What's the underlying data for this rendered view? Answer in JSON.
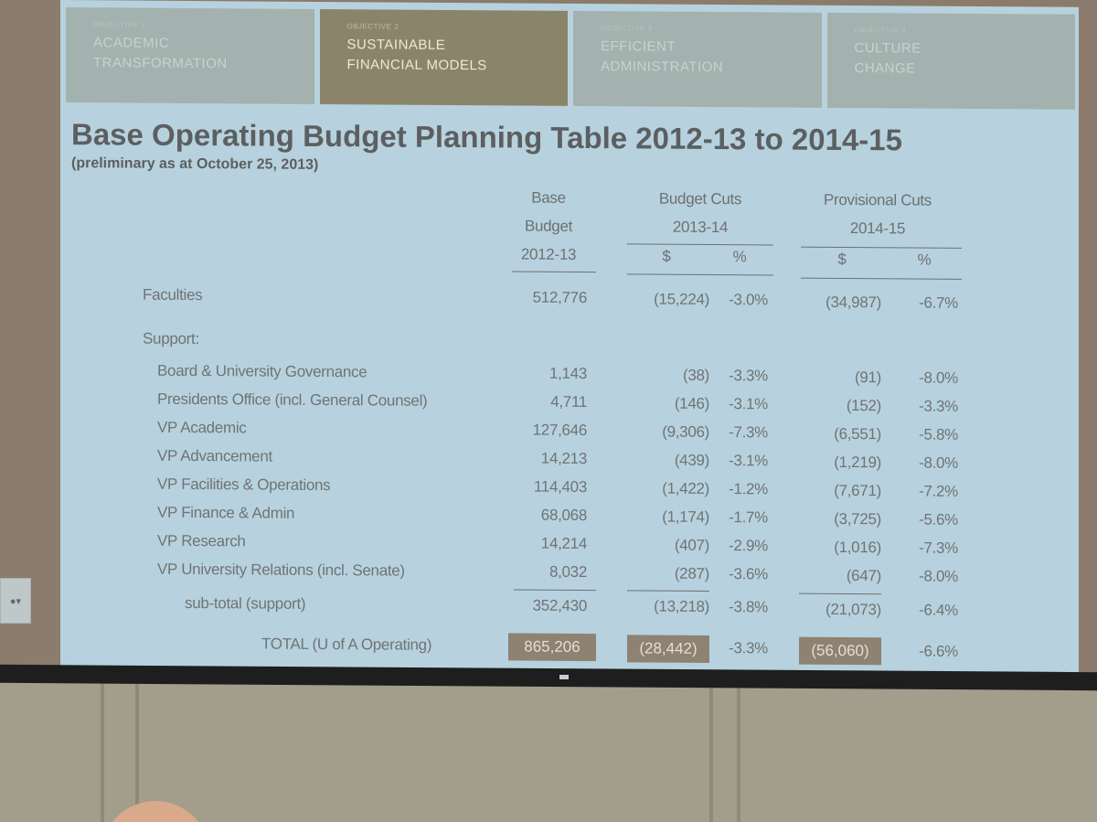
{
  "slide": {
    "tabs": [
      {
        "kicker": "OBJECTIVE 1",
        "line1": "ACADEMIC",
        "line2": "TRANSFORMATION",
        "active": false
      },
      {
        "kicker": "OBJECTIVE 2",
        "line1": "SUSTAINABLE",
        "line2": "FINANCIAL MODELS",
        "active": true
      },
      {
        "kicker": "OBJECTIVE 3",
        "line1": "EFFICIENT",
        "line2": "ADMINISTRATION",
        "active": false
      },
      {
        "kicker": "OBJECTIVE 4",
        "line1": "CULTURE",
        "line2": "CHANGE",
        "active": false
      }
    ],
    "title": "Base Operating Budget Planning Table 2012-13 to 2014-15",
    "subtitle": "(preliminary as at October 25, 2013)"
  },
  "table": {
    "headers": {
      "base": [
        "Base",
        "Budget",
        "2012-13"
      ],
      "cuts": [
        "Budget Cuts",
        "2013-14"
      ],
      "prov": [
        "Provisional Cuts",
        "2014-15"
      ],
      "dollar": "$",
      "percent": "%"
    },
    "faculties": {
      "label": "Faculties",
      "base": "512,776",
      "cut": "(15,224)",
      "cut_pct": "-3.0%",
      "prov": "(34,987)",
      "prov_pct": "-6.7%"
    },
    "support_label": "Support:",
    "support_rows": [
      {
        "label": "Board & University Governance",
        "base": "1,143",
        "cut": "(38)",
        "cut_pct": "-3.3%",
        "prov": "(91)",
        "prov_pct": "-8.0%"
      },
      {
        "label": "Presidents Office (incl. General Counsel)",
        "base": "4,711",
        "cut": "(146)",
        "cut_pct": "-3.1%",
        "prov": "(152)",
        "prov_pct": "-3.3%"
      },
      {
        "label": "VP Academic",
        "base": "127,646",
        "cut": "(9,306)",
        "cut_pct": "-7.3%",
        "prov": "(6,551)",
        "prov_pct": "-5.8%"
      },
      {
        "label": "VP Advancement",
        "base": "14,213",
        "cut": "(439)",
        "cut_pct": "-3.1%",
        "prov": "(1,219)",
        "prov_pct": "-8.0%"
      },
      {
        "label": "VP Facilities & Operations",
        "base": "114,403",
        "cut": "(1,422)",
        "cut_pct": "-1.2%",
        "prov": "(7,671)",
        "prov_pct": "-7.2%"
      },
      {
        "label": "VP Finance & Admin",
        "base": "68,068",
        "cut": "(1,174)",
        "cut_pct": "-1.7%",
        "prov": "(3,725)",
        "prov_pct": "-5.6%"
      },
      {
        "label": "VP Research",
        "base": "14,214",
        "cut": "(407)",
        "cut_pct": "-2.9%",
        "prov": "(1,016)",
        "prov_pct": "-7.3%"
      },
      {
        "label": "VP University Relations (incl. Senate)",
        "base": "8,032",
        "cut": "(287)",
        "cut_pct": "-3.6%",
        "prov": "(647)",
        "prov_pct": "-8.0%"
      }
    ],
    "subtotal": {
      "label": "sub-total (support)",
      "base": "352,430",
      "cut": "(13,218)",
      "cut_pct": "-3.8%",
      "prov": "(21,073)",
      "prov_pct": "-6.4%"
    },
    "total": {
      "label": "TOTAL (U of A Operating)",
      "base": "865,206",
      "cut": "(28,442)",
      "cut_pct": "-3.3%",
      "prov": "(56,060)",
      "prov_pct": "-6.6%"
    }
  },
  "colors": {
    "slide_bg": "#b7d2de",
    "active_tab": "#8a856a",
    "inactive_tab": "#a3b2ae",
    "total_box": "#8e8272",
    "text": "#6d7072"
  }
}
